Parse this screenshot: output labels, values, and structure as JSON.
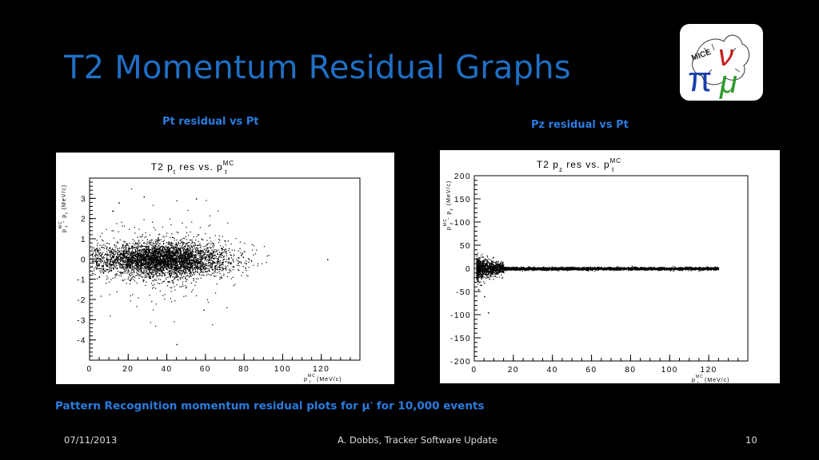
{
  "slide": {
    "title": "T2 Momentum Residual Graphs",
    "left_subtitle": "Pt residual vs Pt",
    "right_subtitle": "Pz residual vs Pt",
    "caption_main": "Pattern Recognition momentum residual plots for μ",
    "caption_sup": "-",
    "caption_tail": " for 10,000 events",
    "footer_date": "07/11/2013",
    "footer_center": "A. Dobbs, Tracker Software Update",
    "footer_page": "10"
  },
  "logo": {
    "text": "MICE",
    "pi": "π",
    "nu": "ν",
    "mu": "μ"
  },
  "chart_data": [
    {
      "type": "scatter",
      "title_main": "T2 p",
      "title_sub": "t",
      "title_mid": " res vs. p",
      "title_sup": "MC",
      "title_sub2": "t",
      "ylabel": "p",
      "ylabel_sup": "MC",
      "ylabel_sub": "t",
      "ylabel_mid": " - p",
      "ylabel_sub2": "t",
      "ylabel_unit": " (MeV/c)",
      "xlabel": "p",
      "xlabel_sup": "MC",
      "xlabel_sub": "t",
      "xlabel_unit": " (MeV/c)",
      "xlim": [
        0,
        140
      ],
      "ylim": [
        -5,
        4
      ],
      "xticks": [
        "0",
        "20",
        "40",
        "60",
        "80",
        "100",
        "120"
      ],
      "yticks": [
        "3",
        "2",
        "1",
        "0",
        "-1",
        "-2",
        "-3",
        "-4"
      ],
      "events": 10000,
      "distribution": {
        "x_center": 38,
        "x_spread": 24,
        "x_max": 125,
        "y_center": 0,
        "y_sigma": 0.4,
        "outliers": [
          {
            "x": 28,
            "y": 3.1
          },
          {
            "x": 55,
            "y": 3.0
          },
          {
            "x": 15,
            "y": 2.8
          },
          {
            "x": 45,
            "y": -4.2
          },
          {
            "x": 59,
            "y": -2.5
          },
          {
            "x": 123,
            "y": 0
          }
        ]
      }
    },
    {
      "type": "scatter",
      "title_main": "T2 p",
      "title_sub": "z",
      "title_mid": " res vs. p",
      "title_sup": "MC",
      "title_sub2": "t",
      "ylabel": "p",
      "ylabel_sup": "MC",
      "ylabel_sub": "z",
      "ylabel_mid": " - p",
      "ylabel_sub2": "z",
      "ylabel_unit": " (MeV/c)",
      "xlabel": "p",
      "xlabel_sup": "MC",
      "xlabel_sub": "t",
      "xlabel_unit": " (MeV/c)",
      "xlim": [
        0,
        140
      ],
      "ylim": [
        -200,
        200
      ],
      "xticks": [
        "0",
        "20",
        "40",
        "60",
        "80",
        "100",
        "120"
      ],
      "yticks": [
        "200",
        "150",
        "100",
        "50",
        "0",
        "-50",
        "-100",
        "-150",
        "-200"
      ],
      "events": 10000,
      "distribution": {
        "x_min": 1,
        "x_max": 125,
        "y_center": 0,
        "y_sigma_near_zero": 12,
        "y_sigma_far": 1.5,
        "outliers": [
          {
            "x": 5,
            "y": -60
          },
          {
            "x": 7,
            "y": -95
          },
          {
            "x": 3,
            "y": -35
          },
          {
            "x": 4,
            "y": 25
          },
          {
            "x": 2,
            "y": -45
          }
        ]
      }
    }
  ]
}
